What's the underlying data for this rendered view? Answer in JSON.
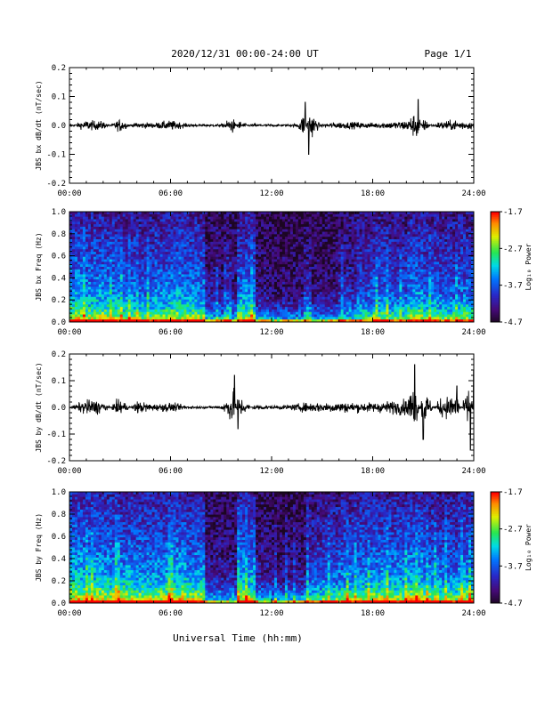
{
  "header": {
    "date_text": "2020/12/31  00:00-24:00 UT",
    "page_text": "Page 1/1"
  },
  "footer": {
    "xlabel": "Universal Time (hh:mm)"
  },
  "colors": {
    "trace": "#000000",
    "spectrogram_low": "#2a0a3a",
    "spectrogram_high": "#ff0000"
  },
  "chart_data": [
    {
      "type": "line",
      "ylabel": "JBS bx dB/dt (nT/sec)",
      "xlim": [
        0,
        24
      ],
      "ylim": [
        -0.2,
        0.2
      ],
      "x_ticks": [
        "00:00",
        "06:00",
        "12:00",
        "18:00",
        "24:00"
      ],
      "y_ticks": [
        "0.2",
        "0.1",
        "0.0",
        "-0.1",
        "-0.2"
      ],
      "series": [
        {
          "x": [
            0,
            1,
            2,
            3,
            4,
            5,
            6,
            7,
            8,
            9,
            9.7,
            10,
            11,
            12,
            13,
            13.5,
            14,
            14.2,
            15,
            16,
            17,
            18,
            19,
            20,
            20.7,
            21,
            22,
            23,
            24
          ],
          "y": [
            0.0,
            0.03,
            0.025,
            -0.04,
            0.02,
            0.015,
            0.03,
            0.01,
            0.005,
            0.005,
            0.05,
            -0.03,
            0.01,
            0.005,
            0.005,
            0.01,
            0.08,
            -0.1,
            0.01,
            0.02,
            0.02,
            0.015,
            0.02,
            0.03,
            0.09,
            -0.04,
            0.025,
            0.03,
            0.02
          ]
        }
      ]
    },
    {
      "type": "heatmap",
      "ylabel": "JBS bx Freq (Hz)",
      "xlim": [
        0,
        24
      ],
      "ylim": [
        0.0,
        1.0
      ],
      "x_ticks": [
        "00:00",
        "06:00",
        "12:00",
        "18:00",
        "24:00"
      ],
      "y_ticks": [
        "1.0",
        "0.8",
        "0.6",
        "0.4",
        "0.2",
        "0.0"
      ],
      "colorbar": {
        "label": "Log₁₀ Power",
        "ticks": [
          "-1.7",
          "-2.7",
          "-3.7",
          "-4.7"
        ],
        "range": [
          -4.7,
          -1.7
        ]
      },
      "hour_activity": [
        0.62,
        0.6,
        0.58,
        0.55,
        0.5,
        0.55,
        0.6,
        0.56,
        0.22,
        0.2,
        0.55,
        0.18,
        0.14,
        0.14,
        0.15,
        0.18,
        0.3,
        0.42,
        0.48,
        0.44,
        0.58,
        0.5,
        0.46,
        0.5
      ]
    },
    {
      "type": "line",
      "ylabel": "JBS by dB/dt (nT/sec)",
      "xlim": [
        0,
        24
      ],
      "ylim": [
        -0.2,
        0.2
      ],
      "x_ticks": [
        "00:00",
        "06:00",
        "12:00",
        "18:00",
        "24:00"
      ],
      "y_ticks": [
        "0.2",
        "0.1",
        "0.0",
        "-0.1",
        "-0.2"
      ],
      "series": [
        {
          "x": [
            0,
            1,
            2,
            3,
            4,
            5,
            6,
            7,
            8,
            9,
            9.8,
            10,
            11,
            12,
            13,
            14,
            15,
            16,
            17,
            18,
            19,
            20,
            20.5,
            21,
            22,
            23,
            23.8,
            24
          ],
          "y": [
            0.0,
            0.05,
            0.04,
            -0.06,
            0.04,
            0.02,
            0.03,
            0.01,
            0.005,
            0.01,
            0.12,
            -0.08,
            0.02,
            0.01,
            0.015,
            0.03,
            0.03,
            0.035,
            0.03,
            0.03,
            0.04,
            0.05,
            0.16,
            -0.12,
            0.06,
            0.08,
            -0.16,
            0.14
          ]
        }
      ]
    },
    {
      "type": "heatmap",
      "ylabel": "JBS by Freq (Hz)",
      "xlim": [
        0,
        24
      ],
      "ylim": [
        0.0,
        1.0
      ],
      "x_ticks": [
        "00:00",
        "06:00",
        "12:00",
        "18:00",
        "24:00"
      ],
      "y_ticks": [
        "1.0",
        "0.8",
        "0.6",
        "0.4",
        "0.2",
        "0.0"
      ],
      "colorbar": {
        "label": "Log₁₀ Power",
        "ticks": [
          "-1.7",
          "-2.7",
          "-3.7",
          "-4.7"
        ],
        "range": [
          -4.7,
          -1.7
        ]
      },
      "hour_activity": [
        0.68,
        0.66,
        0.64,
        0.62,
        0.6,
        0.62,
        0.66,
        0.6,
        0.24,
        0.22,
        0.62,
        0.22,
        0.18,
        0.2,
        0.4,
        0.46,
        0.52,
        0.56,
        0.6,
        0.58,
        0.64,
        0.56,
        0.52,
        0.6
      ]
    }
  ]
}
